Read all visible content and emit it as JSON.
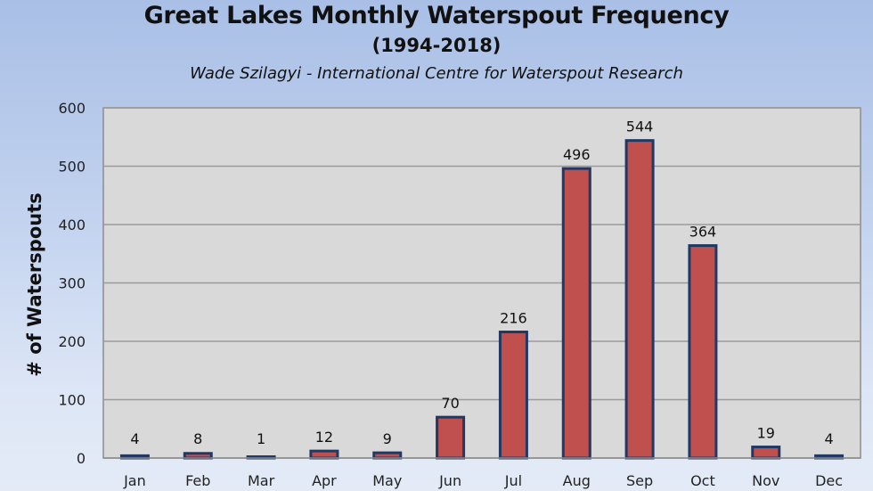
{
  "chart_data": {
    "type": "bar",
    "title": "Great Lakes Monthly Waterspout Frequency",
    "subtitle": "(1994-2018)",
    "credit": "Wade Szilagyi - International Centre for Waterspout Research",
    "xlabel": "",
    "ylabel": "# of Waterspouts",
    "categories": [
      "Jan",
      "Feb",
      "Mar",
      "Apr",
      "May",
      "Jun",
      "Jul",
      "Aug",
      "Sep",
      "Oct",
      "Nov",
      "Dec"
    ],
    "values": [
      4,
      8,
      1,
      12,
      9,
      70,
      216,
      496,
      544,
      364,
      19,
      4
    ],
    "data_labels": [
      "4",
      "8",
      "1",
      "12",
      "9",
      "70",
      "216",
      "496",
      "544",
      "364",
      "19",
      "4"
    ],
    "ylim": [
      0,
      600
    ],
    "yticks": [
      0,
      100,
      200,
      300,
      400,
      500,
      600
    ],
    "ytick_labels": [
      "0",
      "100",
      "200",
      "300",
      "400",
      "500",
      "600"
    ],
    "grid": true,
    "legend": "none",
    "colors": {
      "bar_fill": "#c0504d",
      "bar_edge": "#1f3864",
      "plot_bg": "#d9d9d9",
      "grid": "#9a9a9a"
    }
  }
}
